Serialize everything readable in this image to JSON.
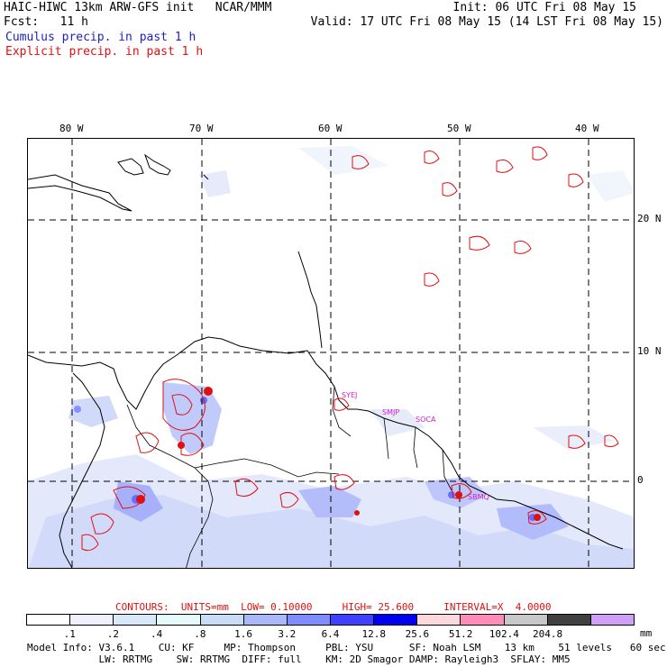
{
  "header": {
    "model_title": "HAIC-HIWC 13km ARW-GFS init   NCAR/MMM",
    "init_time": "Init: 06 UTC Fri 08 May 15",
    "fcst_label": "Fcst:   11 h",
    "valid_time": "Valid: 17 UTC Fri 08 May 15 (14 LST Fri 08 May 15)",
    "cumulus_label": "Cumulus precip. in past 1 h",
    "explicit_label": "Explicit precip. in past 1 h"
  },
  "map": {
    "lon_labels": [
      "80 W",
      "70 W",
      "60 W",
      "50 W",
      "40 W"
    ],
    "lat_labels": [
      "20 N",
      "10 N",
      "0"
    ],
    "stations": [
      "SYEJ",
      "SMJP",
      "SOCA",
      "SBMQ"
    ],
    "colors": {
      "explicit": "#e01010",
      "cumulus": "#6f7fff",
      "coast": "#000000",
      "grid": "#000000"
    }
  },
  "legend": {
    "contour_info": "CONTOURS:  UNITS=mm  LOW= 0.10000     HIGH= 25.600     INTERVAL=X  4.0000",
    "ticks": [
      ".1",
      ".2",
      ".4",
      ".8",
      "1.6",
      "3.2",
      "6.4",
      "12.8",
      "25.6",
      "51.2",
      "102.4",
      "204.8"
    ],
    "unit": "mm",
    "colors": [
      "#ffffff",
      "#f0f0fc",
      "#d8e8f8",
      "#e6fafa",
      "#c8dcf8",
      "#a8b8f8",
      "#7f8cff",
      "#4040ff",
      "#0000f0",
      "#ffd8dc",
      "#ff8cb8",
      "#c8c8c8",
      "#404040",
      "#d0a0f8"
    ]
  },
  "footer": {
    "line1": "Model Info: V3.6.1    CU: KF     MP: Thompson     PBL: YSU      SF: Noah LSM    13 km    51 levels   60 sec",
    "line2": "            LW: RRTMG    SW: RRTMG  DIFF: full    KM: 2D Smagor DAMP: Rayleigh3  SFLAY: MM5"
  }
}
